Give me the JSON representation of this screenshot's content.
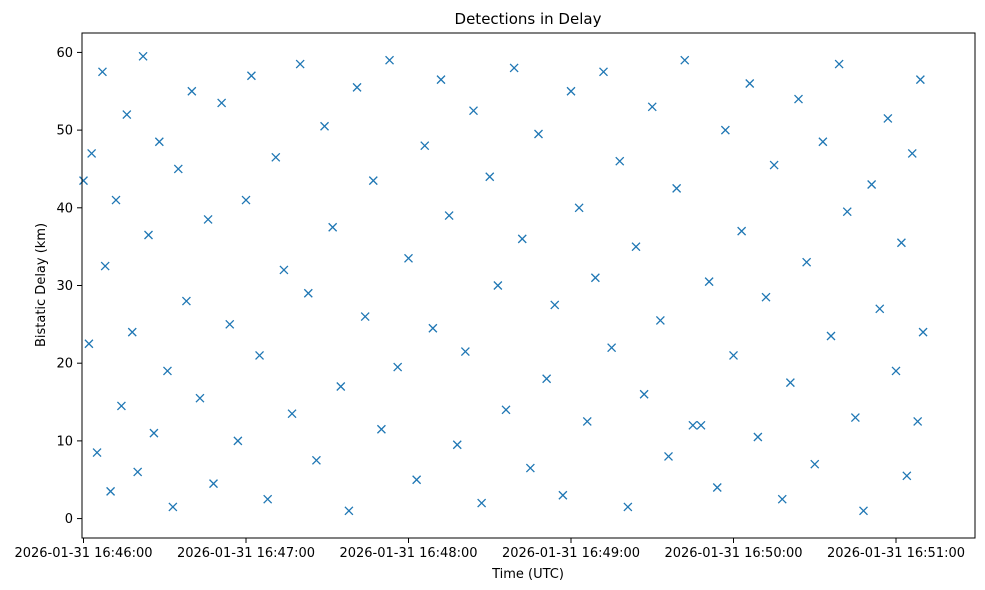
{
  "chart_data": {
    "type": "scatter",
    "title": "Detections in Delay",
    "xlabel": "Time (UTC)",
    "ylabel": "Bistatic Delay (km)",
    "x_range": [
      "2026-01-31 16:46:00",
      "2026-01-31 16:51:10"
    ],
    "ylim": [
      -2.5,
      62.5
    ],
    "x_ticks": [
      "2026-01-31 16:46:00",
      "2026-01-31 16:47:00",
      "2026-01-31 16:48:00",
      "2026-01-31 16:49:00",
      "2026-01-31 16:50:00",
      "2026-01-31 16:51:00"
    ],
    "y_ticks": [
      "0",
      "10",
      "20",
      "30",
      "40",
      "50",
      "60"
    ],
    "marker": "x",
    "color": "#1f77b4",
    "grid": false,
    "legend": "none",
    "series": [
      {
        "points": [
          [
            "2026-01-31 16:46:00",
            43.5
          ],
          [
            "2026-01-31 16:46:02",
            22.5
          ],
          [
            "2026-01-31 16:46:03",
            47.0
          ],
          [
            "2026-01-31 16:46:05",
            8.5
          ],
          [
            "2026-01-31 16:46:07",
            57.5
          ],
          [
            "2026-01-31 16:46:08",
            32.5
          ],
          [
            "2026-01-31 16:46:10",
            3.5
          ],
          [
            "2026-01-31 16:46:12",
            41.0
          ],
          [
            "2026-01-31 16:46:14",
            14.5
          ],
          [
            "2026-01-31 16:46:16",
            52.0
          ],
          [
            "2026-01-31 16:46:18",
            24.0
          ],
          [
            "2026-01-31 16:46:20",
            6.0
          ],
          [
            "2026-01-31 16:46:22",
            59.5
          ],
          [
            "2026-01-31 16:46:24",
            36.5
          ],
          [
            "2026-01-31 16:46:26",
            11.0
          ],
          [
            "2026-01-31 16:46:28",
            48.5
          ],
          [
            "2026-01-31 16:46:31",
            19.0
          ],
          [
            "2026-01-31 16:46:33",
            1.5
          ],
          [
            "2026-01-31 16:46:35",
            45.0
          ],
          [
            "2026-01-31 16:46:38",
            28.0
          ],
          [
            "2026-01-31 16:46:40",
            55.0
          ],
          [
            "2026-01-31 16:46:43",
            15.5
          ],
          [
            "2026-01-31 16:46:46",
            38.5
          ],
          [
            "2026-01-31 16:46:48",
            4.5
          ],
          [
            "2026-01-31 16:46:51",
            53.5
          ],
          [
            "2026-01-31 16:46:54",
            25.0
          ],
          [
            "2026-01-31 16:46:57",
            10.0
          ],
          [
            "2026-01-31 16:47:00",
            41.0
          ],
          [
            "2026-01-31 16:47:02",
            57.0
          ],
          [
            "2026-01-31 16:47:05",
            21.0
          ],
          [
            "2026-01-31 16:47:08",
            2.5
          ],
          [
            "2026-01-31 16:47:11",
            46.5
          ],
          [
            "2026-01-31 16:47:14",
            32.0
          ],
          [
            "2026-01-31 16:47:17",
            13.5
          ],
          [
            "2026-01-31 16:47:20",
            58.5
          ],
          [
            "2026-01-31 16:47:23",
            29.0
          ],
          [
            "2026-01-31 16:47:26",
            7.5
          ],
          [
            "2026-01-31 16:47:29",
            50.5
          ],
          [
            "2026-01-31 16:47:32",
            37.5
          ],
          [
            "2026-01-31 16:47:35",
            17.0
          ],
          [
            "2026-01-31 16:47:38",
            1.0
          ],
          [
            "2026-01-31 16:47:41",
            55.5
          ],
          [
            "2026-01-31 16:47:44",
            26.0
          ],
          [
            "2026-01-31 16:47:47",
            43.5
          ],
          [
            "2026-01-31 16:47:50",
            11.5
          ],
          [
            "2026-01-31 16:47:53",
            59.0
          ],
          [
            "2026-01-31 16:47:56",
            19.5
          ],
          [
            "2026-01-31 16:48:00",
            33.5
          ],
          [
            "2026-01-31 16:48:03",
            5.0
          ],
          [
            "2026-01-31 16:48:06",
            48.0
          ],
          [
            "2026-01-31 16:48:09",
            24.5
          ],
          [
            "2026-01-31 16:48:12",
            56.5
          ],
          [
            "2026-01-31 16:48:15",
            39.0
          ],
          [
            "2026-01-31 16:48:18",
            9.5
          ],
          [
            "2026-01-31 16:48:21",
            21.5
          ],
          [
            "2026-01-31 16:48:24",
            52.5
          ],
          [
            "2026-01-31 16:48:27",
            2.0
          ],
          [
            "2026-01-31 16:48:30",
            44.0
          ],
          [
            "2026-01-31 16:48:33",
            30.0
          ],
          [
            "2026-01-31 16:48:36",
            14.0
          ],
          [
            "2026-01-31 16:48:39",
            58.0
          ],
          [
            "2026-01-31 16:48:42",
            36.0
          ],
          [
            "2026-01-31 16:48:45",
            6.5
          ],
          [
            "2026-01-31 16:48:48",
            49.5
          ],
          [
            "2026-01-31 16:48:51",
            18.0
          ],
          [
            "2026-01-31 16:48:54",
            27.5
          ],
          [
            "2026-01-31 16:48:57",
            3.0
          ],
          [
            "2026-01-31 16:49:00",
            55.0
          ],
          [
            "2026-01-31 16:49:03",
            40.0
          ],
          [
            "2026-01-31 16:49:06",
            12.5
          ],
          [
            "2026-01-31 16:49:09",
            31.0
          ],
          [
            "2026-01-31 16:49:12",
            57.5
          ],
          [
            "2026-01-31 16:49:15",
            22.0
          ],
          [
            "2026-01-31 16:49:18",
            46.0
          ],
          [
            "2026-01-31 16:49:21",
            1.5
          ],
          [
            "2026-01-31 16:49:24",
            35.0
          ],
          [
            "2026-01-31 16:49:27",
            16.0
          ],
          [
            "2026-01-31 16:49:30",
            53.0
          ],
          [
            "2026-01-31 16:49:33",
            25.5
          ],
          [
            "2026-01-31 16:49:36",
            8.0
          ],
          [
            "2026-01-31 16:49:39",
            42.5
          ],
          [
            "2026-01-31 16:49:42",
            59.0
          ],
          [
            "2026-01-31 16:49:45",
            12.0
          ],
          [
            "2026-01-31 16:49:48",
            12.0
          ],
          [
            "2026-01-31 16:49:51",
            30.5
          ],
          [
            "2026-01-31 16:49:54",
            4.0
          ],
          [
            "2026-01-31 16:49:57",
            50.0
          ],
          [
            "2026-01-31 16:50:00",
            21.0
          ],
          [
            "2026-01-31 16:50:03",
            37.0
          ],
          [
            "2026-01-31 16:50:06",
            56.0
          ],
          [
            "2026-01-31 16:50:09",
            10.5
          ],
          [
            "2026-01-31 16:50:12",
            28.5
          ],
          [
            "2026-01-31 16:50:15",
            45.5
          ],
          [
            "2026-01-31 16:50:18",
            2.5
          ],
          [
            "2026-01-31 16:50:21",
            17.5
          ],
          [
            "2026-01-31 16:50:24",
            54.0
          ],
          [
            "2026-01-31 16:50:27",
            33.0
          ],
          [
            "2026-01-31 16:50:30",
            7.0
          ],
          [
            "2026-01-31 16:50:33",
            48.5
          ],
          [
            "2026-01-31 16:50:36",
            23.5
          ],
          [
            "2026-01-31 16:50:39",
            58.5
          ],
          [
            "2026-01-31 16:50:42",
            39.5
          ],
          [
            "2026-01-31 16:50:45",
            13.0
          ],
          [
            "2026-01-31 16:50:48",
            1.0
          ],
          [
            "2026-01-31 16:50:51",
            43.0
          ],
          [
            "2026-01-31 16:50:54",
            27.0
          ],
          [
            "2026-01-31 16:50:57",
            51.5
          ],
          [
            "2026-01-31 16:51:00",
            19.0
          ],
          [
            "2026-01-31 16:51:02",
            35.5
          ],
          [
            "2026-01-31 16:51:04",
            5.5
          ],
          [
            "2026-01-31 16:51:06",
            47.0
          ],
          [
            "2026-01-31 16:51:08",
            12.5
          ],
          [
            "2026-01-31 16:51:09",
            56.5
          ],
          [
            "2026-01-31 16:51:10",
            24.0
          ]
        ]
      }
    ]
  }
}
